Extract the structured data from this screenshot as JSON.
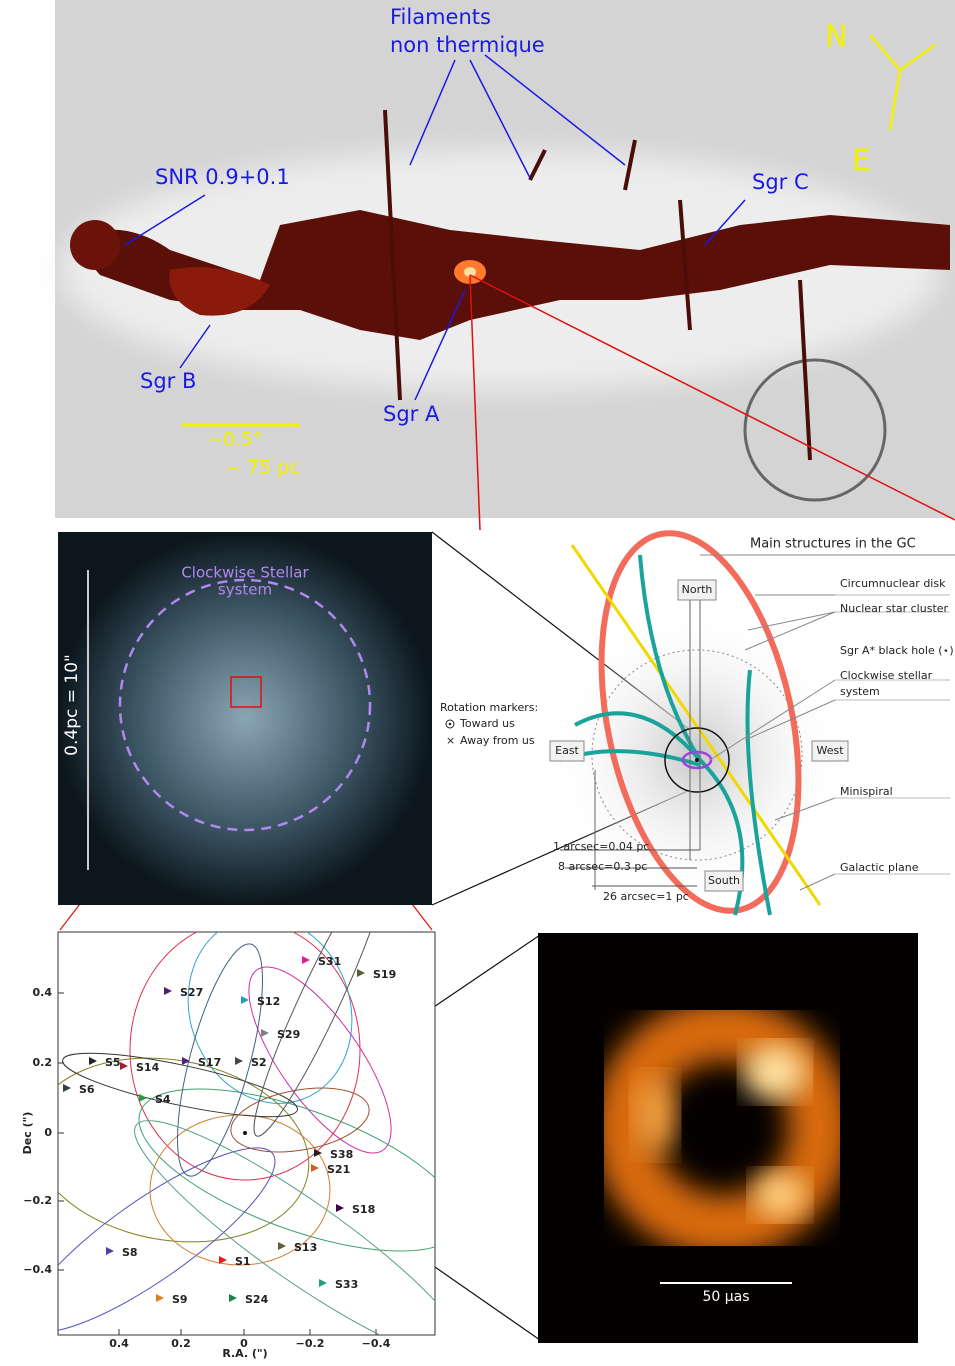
{
  "overview": {
    "filaments": [
      "Filaments",
      "non thermique"
    ],
    "snr": "SNR 0.9+0.1",
    "sgr_c": "Sgr C",
    "sgr_b": "Sgr B",
    "sgr_a": "Sgr A",
    "compass": {
      "north": "N",
      "east": "E"
    },
    "scale": [
      "~0.5°",
      "~ 75 pc"
    ]
  },
  "stellar_system": {
    "label": [
      "Clockwise Stellar",
      "system"
    ],
    "scale": "0.4pc = 10\""
  },
  "diagram": {
    "title": "Main structures in the GC",
    "structures": [
      "Circumnuclear disk",
      "Nuclear star cluster",
      "Sgr A* black hole (⋆)",
      "Clockwise stellar",
      "system",
      "Minispiral",
      "Galactic plane"
    ],
    "directions": {
      "north": "North",
      "south": "South",
      "east": "East",
      "west": "West"
    },
    "scales": [
      "1 arcsec=0.04 pc",
      "8 arcsec=0.3 pc",
      "26 arcsec=1 pc"
    ],
    "rotation": {
      "title": "Rotation markers:",
      "toward": "Toward us",
      "away": "Away from us"
    }
  },
  "orbits": {
    "stars": [
      "S31",
      "S19",
      "S27",
      "S12",
      "S29",
      "S5",
      "S14",
      "S17",
      "S2",
      "S6",
      "S4",
      "S38",
      "S21",
      "S18",
      "S8",
      "S13",
      "S1",
      "S33",
      "S9",
      "S24"
    ],
    "xticks": [
      "0.4",
      "0.2",
      "0",
      "−0.2",
      "−0.4"
    ],
    "yticks": [
      "0.4",
      "0.2",
      "0",
      "−0.2",
      "−0.4"
    ],
    "xlabel": "R.A. (\")",
    "ylabel": "Dec (\")"
  },
  "image": {
    "scale": "50 μas"
  }
}
